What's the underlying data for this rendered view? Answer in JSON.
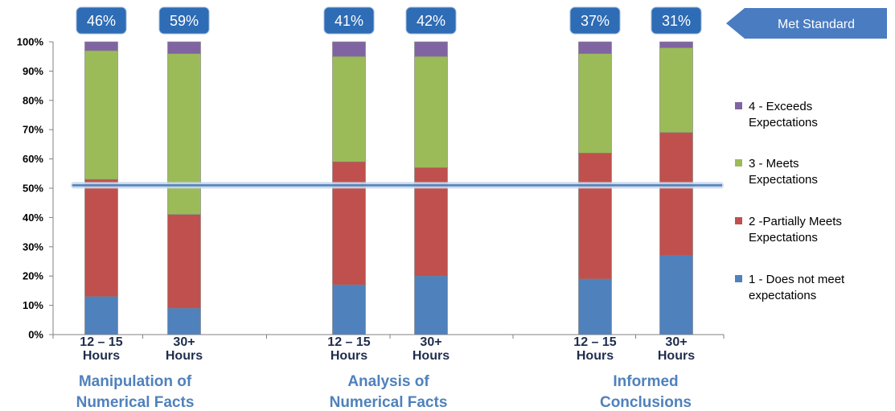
{
  "chart_data": {
    "type": "bar",
    "stacked": true,
    "y_tick_labels": [
      "0%",
      "10%",
      "20%",
      "30%",
      "40%",
      "50%",
      "60%",
      "70%",
      "80%",
      "90%",
      "100%"
    ],
    "ylim": [
      0,
      100
    ],
    "grid": false,
    "legend_position": "right",
    "bars": [
      {
        "group": 0,
        "label": [
          "12 – 15",
          "Hours"
        ]
      },
      {
        "group": 0,
        "label": [
          "30+",
          "Hours"
        ]
      },
      {
        "group": 1,
        "label": [
          "12 – 15",
          "Hours"
        ]
      },
      {
        "group": 1,
        "label": [
          "30+",
          "Hours"
        ]
      },
      {
        "group": 2,
        "label": [
          "12 – 15",
          "Hours"
        ]
      },
      {
        "group": 2,
        "label": [
          "30+",
          "Hours"
        ]
      }
    ],
    "groups": [
      [
        "Manipulation of",
        "Numerical Facts"
      ],
      [
        "Analysis of",
        "Numerical Facts"
      ],
      [
        "Informed",
        "Conclusions"
      ]
    ],
    "series": [
      {
        "name": "1 - Does not meet expectations",
        "legend_lines": [
          "1 - Does not meet",
          "expectations"
        ],
        "color": "#4f81bd",
        "values": [
          13,
          9,
          17,
          20,
          19,
          27
        ]
      },
      {
        "name": "2 -Partially Meets Expectations",
        "legend_lines": [
          "2 -Partially Meets",
          "Expectations"
        ],
        "color": "#c0504d",
        "values": [
          40,
          32,
          42,
          37,
          43,
          42
        ]
      },
      {
        "name": "3 - Meets Expectations",
        "legend_lines": [
          "3 - Meets",
          "Expectations"
        ],
        "color": "#9bbb59",
        "values": [
          44,
          55,
          36,
          38,
          34,
          29
        ]
      },
      {
        "name": "4 - Exceeds Expectations",
        "legend_lines": [
          "4 - Exceeds",
          "Expectations"
        ],
        "color": "#8064a2",
        "values": [
          3,
          4,
          5,
          5,
          4,
          2
        ]
      }
    ],
    "met_standard_percentages": [
      "46%",
      "59%",
      "41%",
      "42%",
      "37%",
      "31%"
    ],
    "reference_line": {
      "value": 51,
      "color": "#4f81bd"
    }
  },
  "annotation": {
    "met_standard_label": "Met Standard"
  },
  "colors": {
    "badge": "#2e6cb5",
    "arrow": "#4a7cc2"
  }
}
